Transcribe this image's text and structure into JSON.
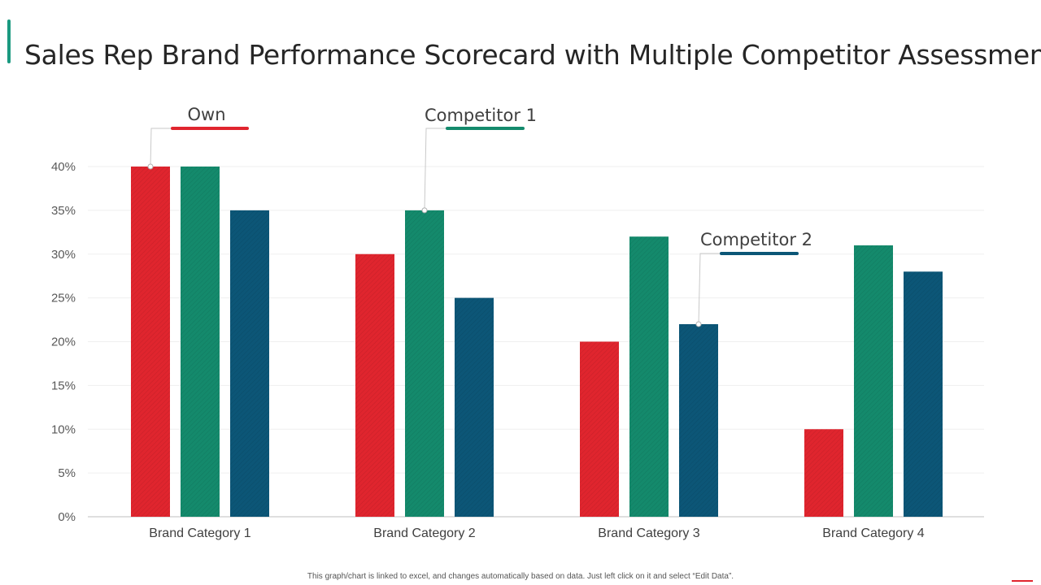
{
  "header": {
    "title": "Sales Rep Brand Performance Scorecard with Multiple Competitor Assessment"
  },
  "footer": {
    "note": "This graph/chart is linked to excel, and changes automatically based on data. Just left click on it and select “Edit Data”."
  },
  "colors": {
    "own": "#e0252e",
    "competitor1": "#148a6c",
    "competitor2": "#0c5677",
    "accent": "#1a9980"
  },
  "chart_data": {
    "type": "bar",
    "title": "",
    "xlabel": "",
    "ylabel": "",
    "categories": [
      "Brand Category  1",
      "Brand Category  2",
      "Brand Category  3",
      "Brand Category  4"
    ],
    "series": [
      {
        "name": "Own",
        "values": [
          40,
          30,
          20,
          10
        ]
      },
      {
        "name": "Competitor  1",
        "values": [
          40,
          35,
          32,
          31
        ]
      },
      {
        "name": "Competitor 2",
        "values": [
          35,
          25,
          22,
          28
        ]
      }
    ],
    "ylim": [
      0,
      40
    ],
    "yticks": [
      0,
      5,
      10,
      15,
      20,
      25,
      30,
      35,
      40
    ],
    "ytick_labels": [
      "0%",
      "5%",
      "10%",
      "15%",
      "20%",
      "25%",
      "30%",
      "35%",
      "40%"
    ],
    "grid": true,
    "legend": "callouts on bars"
  }
}
